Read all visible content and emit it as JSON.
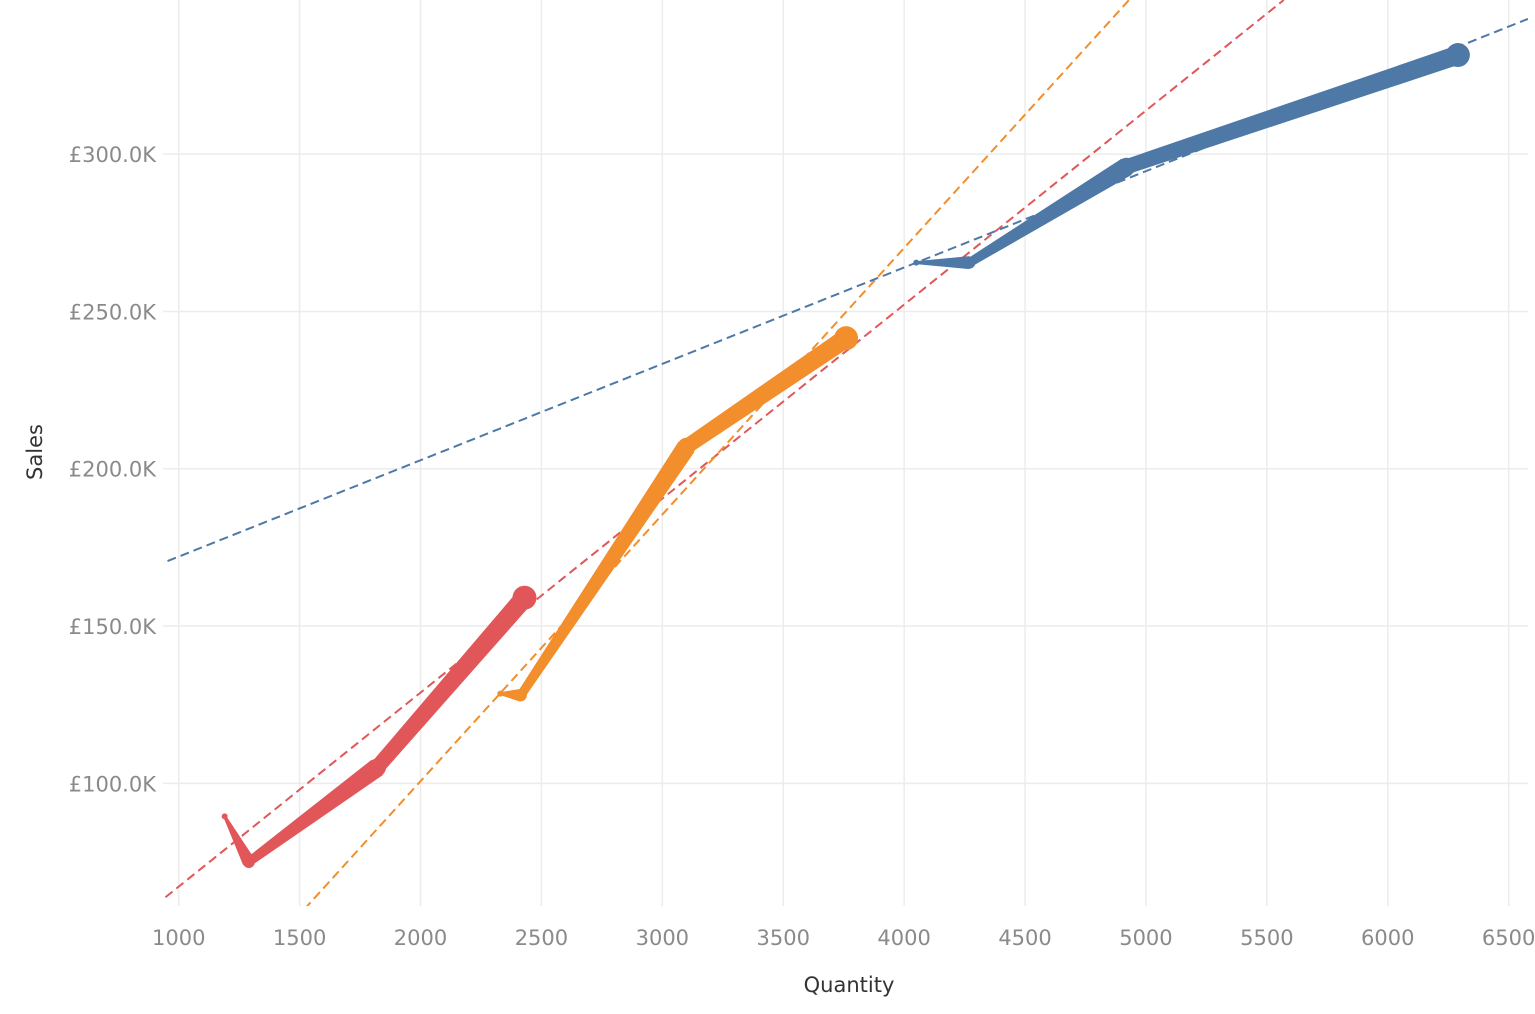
{
  "chart_data": {
    "type": "line",
    "title": "",
    "xlabel": "Quantity",
    "ylabel": "Sales",
    "xlim": [
      935,
      6580
    ],
    "ylim": [
      61000,
      349000
    ],
    "x_ticks": [
      {
        "value": 1000,
        "label": "1000"
      },
      {
        "value": 1500,
        "label": "1500"
      },
      {
        "value": 2000,
        "label": "2000"
      },
      {
        "value": 2500,
        "label": "2500"
      },
      {
        "value": 3000,
        "label": "3000"
      },
      {
        "value": 3500,
        "label": "3500"
      },
      {
        "value": 4000,
        "label": "4000"
      },
      {
        "value": 4500,
        "label": "4500"
      },
      {
        "value": 5000,
        "label": "5000"
      },
      {
        "value": 5500,
        "label": "5500"
      },
      {
        "value": 6000,
        "label": "6000"
      },
      {
        "value": 6500,
        "label": "6500"
      }
    ],
    "y_ticks": [
      {
        "value": 100000,
        "label": "£100.0K"
      },
      {
        "value": 150000,
        "label": "£150.0K"
      },
      {
        "value": 200000,
        "label": "£200.0K"
      },
      {
        "value": 250000,
        "label": "£250.0K"
      },
      {
        "value": 300000,
        "label": "£300.0K"
      }
    ],
    "grid": true,
    "legend": "none",
    "series": [
      {
        "color": "#e15759",
        "points": [
          {
            "x": 1190,
            "y": 89500
          },
          {
            "x": 1290,
            "y": 75000
          },
          {
            "x": 1820,
            "y": 105000
          },
          {
            "x": 2430,
            "y": 159000
          }
        ],
        "trend": {
          "x1": 900,
          "y1": 61000,
          "x2": 5570,
          "y2": 349000
        }
      },
      {
        "color": "#f28e2b",
        "points": [
          {
            "x": 2330,
            "y": 128500
          },
          {
            "x": 2415,
            "y": 128000
          },
          {
            "x": 3100,
            "y": 207000
          },
          {
            "x": 3760,
            "y": 241500
          }
        ],
        "trend": {
          "x1": 1520,
          "y1": 60000,
          "x2": 4930,
          "y2": 349000
        }
      },
      {
        "color": "#4e79a7",
        "points": [
          {
            "x": 4050,
            "y": 265500
          },
          {
            "x": 4270,
            "y": 265500
          },
          {
            "x": 4920,
            "y": 296000
          },
          {
            "x": 6290,
            "y": 331500
          }
        ],
        "trend": {
          "x1": 900,
          "y1": 169000,
          "x2": 6580,
          "y2": 343000
        }
      }
    ]
  }
}
